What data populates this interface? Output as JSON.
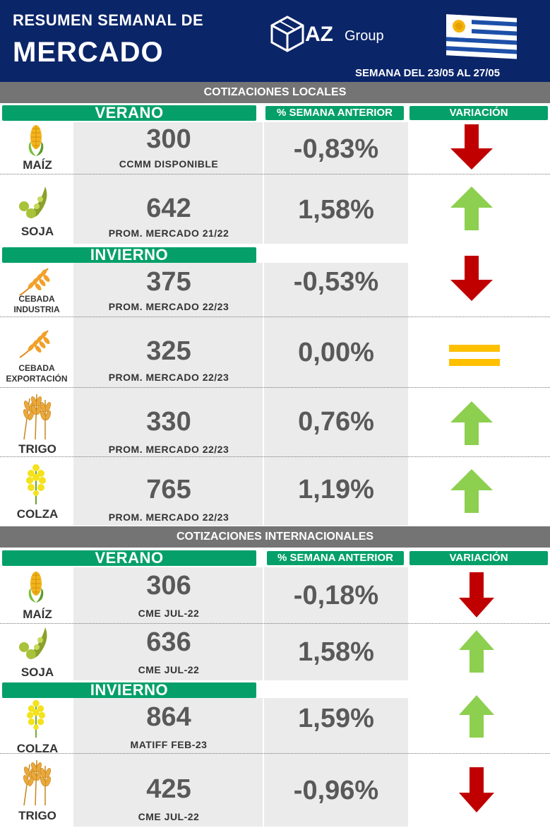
{
  "header": {
    "title_line1": "RESUMEN SEMANAL DE",
    "title_line2": "MERCADO",
    "week": "SEMANA DEL  23/05 AL 27/05",
    "logo_main": "AZ",
    "logo_sub": "Group"
  },
  "local": {
    "section_title": "COTIZACIONES LOCALES",
    "summer_label": "VERANO",
    "winter_label": "INVIERNO",
    "col_pct": "% SEMANA ANTERIOR",
    "col_var": "VARIACIÓN",
    "rows": [
      {
        "name": "MAÍZ",
        "price": "300",
        "desc": "CCMM DISPONIBLE",
        "pct": "-0,83%",
        "trend": "down",
        "icon": "corn-icon"
      },
      {
        "name": "SOJA",
        "price": "642",
        "desc": "PROM. MERCADO 21/22",
        "pct": "1,58%",
        "trend": "up",
        "icon": "soy-icon"
      },
      {
        "name": "CEBADA INDUSTRIA",
        "name1": "CEBADA",
        "name2": "INDUSTRIA",
        "price": "375",
        "desc": "PROM. MERCADO 22/23",
        "pct": "-0,53%",
        "trend": "down",
        "icon": "barley-icon"
      },
      {
        "name": "CEBADA EXPORTACIÓN",
        "name1": "CEBADA",
        "name2": "EXPORTACIÓN",
        "price": "325",
        "desc": "PROM. MERCADO 22/23",
        "pct": "0,00%",
        "trend": "equal",
        "icon": "barley-icon"
      },
      {
        "name": "TRIGO",
        "price": "330",
        "desc": "PROM. MERCADO 22/23",
        "pct": "0,76%",
        "trend": "up",
        "icon": "wheat-icon"
      },
      {
        "name": "COLZA",
        "price": "765",
        "desc": "PROM. MERCADO 22/23",
        "pct": "1,19%",
        "trend": "up",
        "icon": "rapeseed-icon"
      }
    ]
  },
  "intl": {
    "section_title": "COTIZACIONES INTERNACIONALES",
    "summer_label": "VERANO",
    "winter_label": "INVIERNO",
    "col_pct": "% SEMANA ANTERIOR",
    "col_var": "VARIACIÓN",
    "rows": [
      {
        "name": "MAÍZ",
        "price": "306",
        "desc": "CME JUL-22",
        "pct": "-0,18%",
        "trend": "down",
        "icon": "corn-icon"
      },
      {
        "name": "SOJA",
        "price": "636",
        "desc": "CME JUL-22",
        "pct": "1,58%",
        "trend": "up",
        "icon": "soy-icon"
      },
      {
        "name": "COLZA",
        "price": "864",
        "desc": "MATIFF FEB-23",
        "pct": "1,59%",
        "trend": "up",
        "icon": "rapeseed-icon"
      },
      {
        "name": "TRIGO",
        "price": "425",
        "desc": "CME JUL-22",
        "pct": "-0,96%",
        "trend": "down",
        "icon": "wheat-icon"
      }
    ]
  },
  "colors": {
    "header_bg": "#0b2569",
    "green": "#05a06a",
    "up": "#8dcf4f",
    "down": "#c00000",
    "equal": "#ffc000"
  }
}
